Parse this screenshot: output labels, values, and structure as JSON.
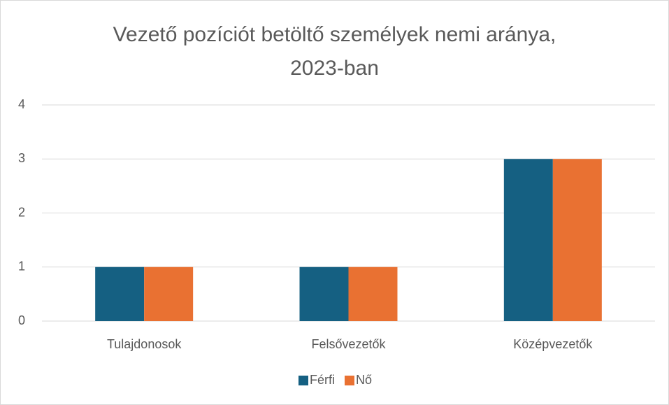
{
  "chart_data": {
    "type": "bar",
    "title": "Vezető pozíciót betöltő személyek nemi aránya, 2023-ban",
    "categories": [
      "Tulajdonosok",
      "Felsővezetők",
      "Középvezetők"
    ],
    "series": [
      {
        "name": "Férfi",
        "color": "#156082",
        "values": [
          1,
          1,
          3
        ]
      },
      {
        "name": "Nő",
        "color": "#E97132",
        "values": [
          1,
          1,
          3
        ]
      }
    ],
    "ylim": [
      0,
      4
    ],
    "yticks": [
      0,
      1,
      2,
      3,
      4
    ],
    "grid": true,
    "legend": "bottom"
  }
}
